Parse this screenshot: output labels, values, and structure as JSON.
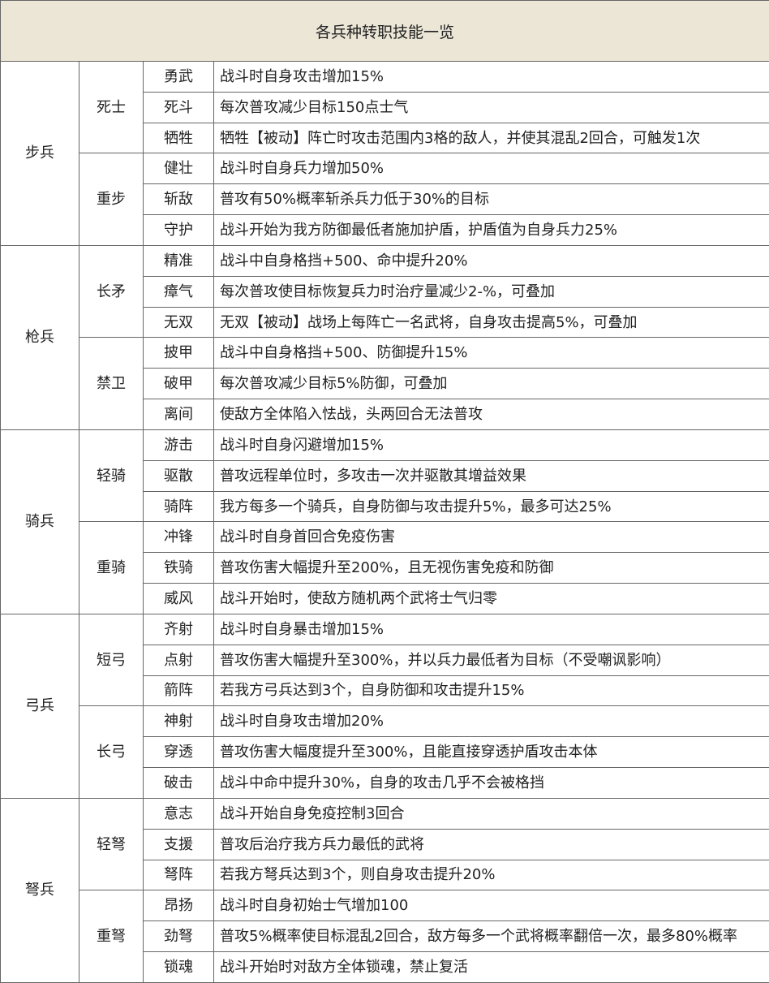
{
  "header": {
    "title": "各兵种转职技能一览"
  },
  "groups": [
    {
      "name": "步兵",
      "subgroups": [
        {
          "name": "死士",
          "skills": [
            {
              "name": "勇武",
              "desc": "战斗时自身攻击增加15%"
            },
            {
              "name": "死斗",
              "desc": "每次普攻减少目标150点士气"
            },
            {
              "name": "牺牲",
              "desc": "牺牲【被动】阵亡时攻击范围内3格的敌人，并使其混乱2回合，可触发1次"
            }
          ]
        },
        {
          "name": "重步",
          "skills": [
            {
              "name": "健壮",
              "desc": "战斗时自身兵力增加50%"
            },
            {
              "name": "斩敌",
              "desc": "普攻有50%概率斩杀兵力低于30%的目标"
            },
            {
              "name": "守护",
              "desc": "战斗开始为我方防御最低者施加护盾，护盾值为自身兵力25%"
            }
          ]
        }
      ]
    },
    {
      "name": "枪兵",
      "subgroups": [
        {
          "name": "长矛",
          "skills": [
            {
              "name": "精准",
              "desc": "战斗中自身格挡+500、命中提升20%"
            },
            {
              "name": "瘴气",
              "desc": "每次普攻使目标恢复兵力时治疗量减少2-%，可叠加"
            },
            {
              "name": "无双",
              "desc": "无双【被动】战场上每阵亡一名武将，自身攻击提高5%，可叠加"
            }
          ]
        },
        {
          "name": "禁卫",
          "skills": [
            {
              "name": "披甲",
              "desc": "战斗中自身格挡+500、防御提升15%"
            },
            {
              "name": "破甲",
              "desc": "每次普攻减少目标5%防御，可叠加"
            },
            {
              "name": "离间",
              "desc": "使敌方全体陷入怯战，头两回合无法普攻"
            }
          ]
        }
      ]
    },
    {
      "name": "骑兵",
      "subgroups": [
        {
          "name": "轻骑",
          "skills": [
            {
              "name": "游击",
              "desc": "战斗时自身闪避增加15%"
            },
            {
              "name": "驱散",
              "desc": "普攻远程单位时，多攻击一次并驱散其增益效果"
            },
            {
              "name": "骑阵",
              "desc": "我方每多一个骑兵，自身防御与攻击提升5%，最多可达25%"
            }
          ]
        },
        {
          "name": "重骑",
          "skills": [
            {
              "name": "冲锋",
              "desc": "战斗时自身首回合免疫伤害"
            },
            {
              "name": "铁骑",
              "desc": "普攻伤害大幅提升至200%，且无视伤害免疫和防御"
            },
            {
              "name": "威风",
              "desc": "战斗开始时，使敌方随机两个武将士气归零"
            }
          ]
        }
      ]
    },
    {
      "name": "弓兵",
      "subgroups": [
        {
          "name": "短弓",
          "skills": [
            {
              "name": "齐射",
              "desc": "战斗时自身暴击增加15%"
            },
            {
              "name": "点射",
              "desc": "普攻伤害大幅提升至300%，并以兵力最低者为目标（不受嘲讽影响）"
            },
            {
              "name": "箭阵",
              "desc": "若我方弓兵达到3个，自身防御和攻击提升15%"
            }
          ]
        },
        {
          "name": "长弓",
          "skills": [
            {
              "name": "神射",
              "desc": "战斗时自身攻击增加20%"
            },
            {
              "name": "穿透",
              "desc": "普攻伤害大幅度提升至300%，且能直接穿透护盾攻击本体"
            },
            {
              "name": "破击",
              "desc": "战斗中命中提升30%，自身的攻击几乎不会被格挡"
            }
          ]
        }
      ]
    },
    {
      "name": "弩兵",
      "subgroups": [
        {
          "name": "轻弩",
          "skills": [
            {
              "name": "意志",
              "desc": "战斗开始自身免疫控制3回合"
            },
            {
              "name": "支援",
              "desc": "普攻后治疗我方兵力最低的武将"
            },
            {
              "name": "弩阵",
              "desc": "若我方弩兵达到3个，则自身攻击提升20%"
            }
          ]
        },
        {
          "name": "重弩",
          "skills": [
            {
              "name": "昂扬",
              "desc": "战斗时自身初始士气增加100"
            },
            {
              "name": "劲弩",
              "desc": "普攻5%概率使目标混乱2回合，敌方每多一个武将概率翻倍一次，最多80%概率"
            },
            {
              "name": "锁魂",
              "desc": "战斗开始时对敌方全体锁魂，禁止复活"
            }
          ]
        }
      ]
    }
  ]
}
